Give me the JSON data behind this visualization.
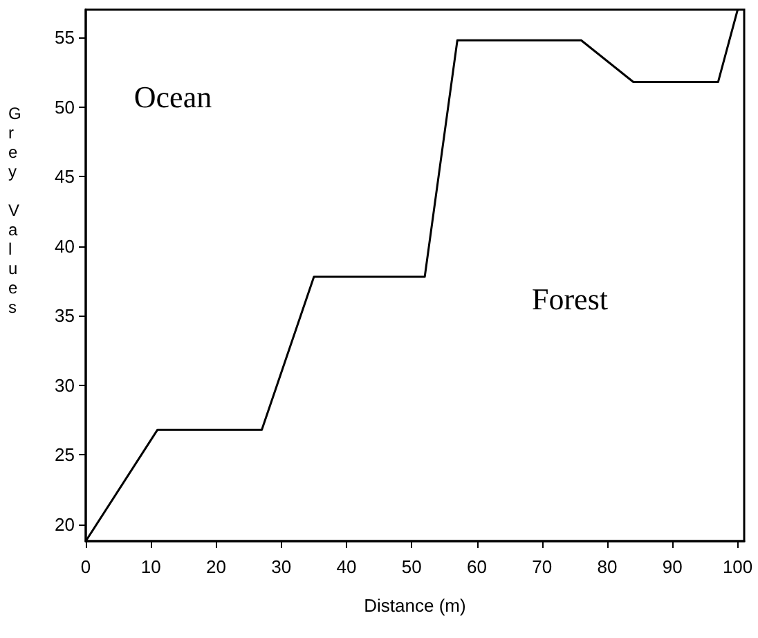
{
  "chart_data": {
    "type": "line",
    "xlabel": "Distance (m)",
    "ylabel": "Grey Values",
    "x": [
      0,
      11,
      27,
      35,
      52,
      57,
      76,
      84,
      97,
      100
    ],
    "values": [
      18.8,
      26.8,
      26.8,
      37.8,
      37.8,
      54.8,
      54.8,
      51.8,
      51.8,
      57
    ],
    "color": "#000000",
    "marker": "none",
    "line_style": "solid",
    "grid": false,
    "xlim": [
      0,
      101
    ],
    "ylim": [
      18.8,
      57
    ],
    "xticks": [
      0,
      10,
      20,
      30,
      40,
      50,
      60,
      70,
      80,
      90,
      100
    ],
    "yticks": [
      20,
      25,
      30,
      35,
      40,
      45,
      50,
      55
    ],
    "annotations": [
      "Ocean",
      "Forest"
    ]
  }
}
